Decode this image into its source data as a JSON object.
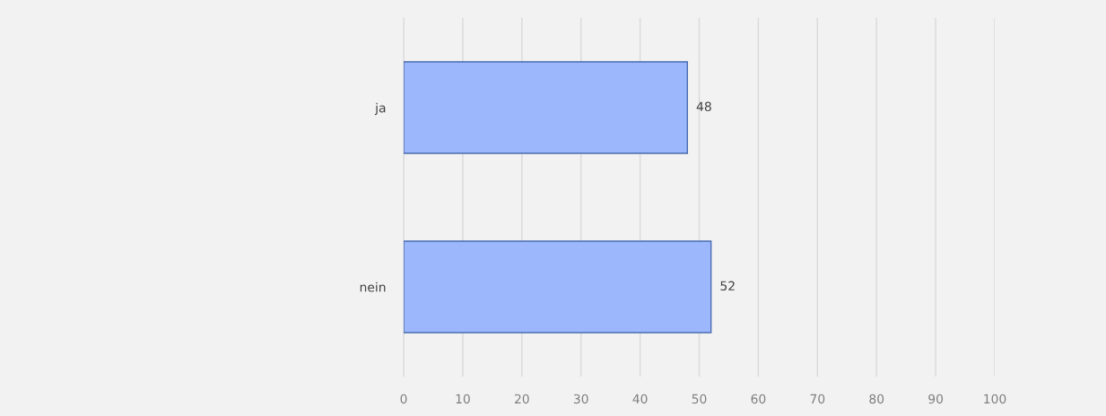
{
  "chart_data": {
    "type": "bar",
    "orientation": "horizontal",
    "categories": [
      "ja",
      "nein"
    ],
    "values": [
      48,
      52
    ],
    "color": "#9db7fd",
    "xlim": [
      0,
      100
    ],
    "xticks": [
      0,
      10,
      20,
      30,
      40,
      50,
      60,
      70,
      80,
      90,
      100
    ],
    "grid": "x",
    "data_labels": true,
    "legend": false
  }
}
